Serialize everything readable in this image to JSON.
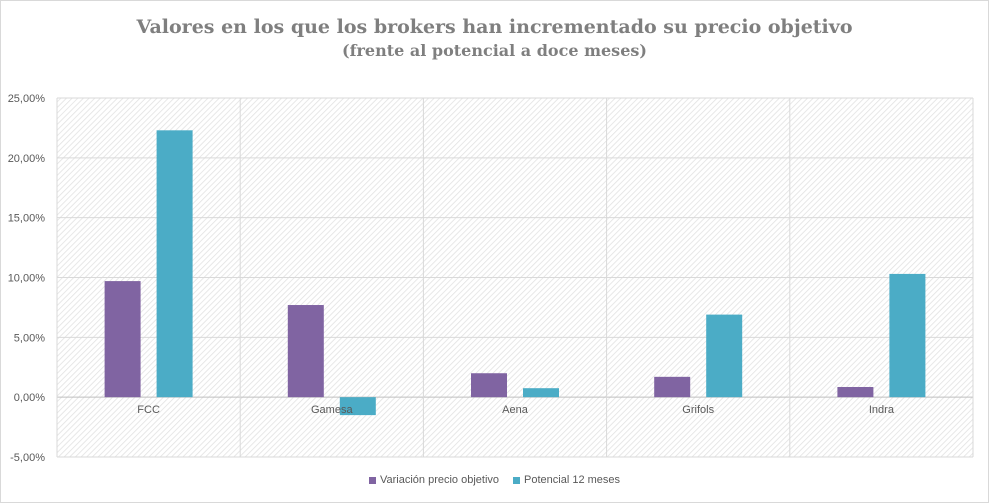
{
  "chart_data": {
    "type": "bar",
    "title": "Valores en los que los brokers han incrementado su precio objetivo",
    "subtitle": "(frente al potencial a doce meses)",
    "categories": [
      "FCC",
      "Gamesa",
      "Aena",
      "Grifols",
      "Indra"
    ],
    "series": [
      {
        "name": "Variación precio objetivo",
        "color": "#8064a2",
        "values": [
          9.7,
          7.7,
          2.0,
          1.7,
          0.85
        ]
      },
      {
        "name": "Potencial 12 meses",
        "color": "#4bacc6",
        "values": [
          22.3,
          -1.5,
          0.75,
          6.9,
          10.3
        ]
      }
    ],
    "ylim": [
      -5,
      25
    ],
    "yticks": [
      "25,00%",
      "20,00%",
      "15,00%",
      "10,00%",
      "5,00%",
      "0,00%",
      "-5,00%"
    ],
    "ytick_values": [
      25,
      20,
      15,
      10,
      5,
      0,
      -5
    ],
    "grid": true,
    "legend": "bottom"
  }
}
